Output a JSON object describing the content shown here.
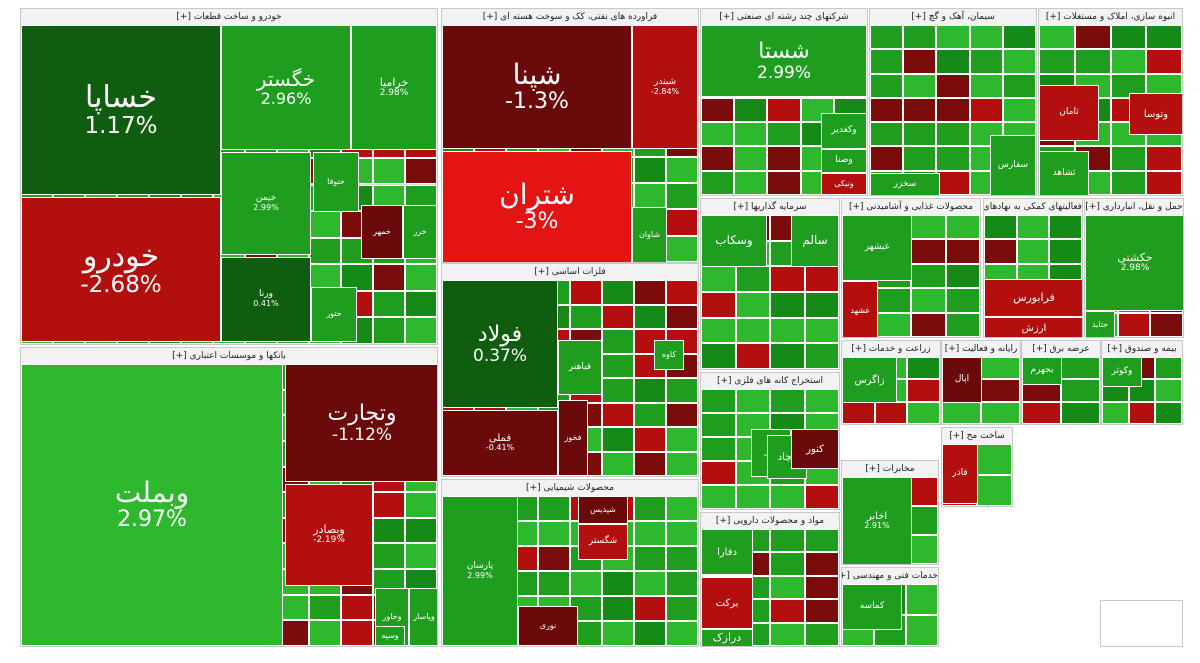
{
  "colors": {
    "strong_green": "#0f5e0f",
    "green": "#1f9d1f",
    "light_green": "#2db82d",
    "strong_red": "#6b0a0a",
    "red": "#b30f0f",
    "bright_red": "#e41414"
  },
  "chart_data": {
    "type": "treemap",
    "metric": "daily percent change",
    "sectors": [
      {
        "name": "خودرو و ساخت قطعات [+]",
        "tiles": [
          {
            "symbol": "خساپا",
            "change": "1.17%",
            "color": "strong_green"
          },
          {
            "symbol": "خودرو",
            "change": "-2.68%",
            "color": "red"
          },
          {
            "symbol": "خگستر",
            "change": "2.96%",
            "color": "green"
          },
          {
            "symbol": "خرامیا",
            "change": "2.98%",
            "color": "green"
          },
          {
            "symbol": "خیمن",
            "change": "2.99%",
            "color": "green"
          },
          {
            "symbol": "ورنا",
            "change": "0.41%",
            "color": "strong_green"
          },
          {
            "symbol": "ختوقا",
            "color": "green"
          },
          {
            "symbol": "خمهر",
            "color": "strong_red"
          },
          {
            "symbol": "ختور",
            "color": "green"
          },
          {
            "symbol": "خزر",
            "color": "green"
          }
        ]
      },
      {
        "name": "بانکها و موسسات اعتباری [+]",
        "tiles": [
          {
            "symbol": "وبملت",
            "change": "2.97%",
            "color": "light_green"
          },
          {
            "symbol": "وتجارت",
            "change": "-1.12%",
            "color": "strong_red"
          },
          {
            "symbol": "وبصادر",
            "change": "-2.19%",
            "color": "red"
          },
          {
            "symbol": "وخاور",
            "color": "green"
          },
          {
            "symbol": "وپاسار",
            "color": "green"
          },
          {
            "symbol": "وسپه",
            "color": "green"
          }
        ]
      },
      {
        "name": "فراورده های نفتی، کک و سوخت هسته ای [+]",
        "tiles": [
          {
            "symbol": "شپنا",
            "change": "-1.3%",
            "color": "strong_red"
          },
          {
            "symbol": "شتران",
            "change": "-3%",
            "color": "bright_red"
          },
          {
            "symbol": "شبندر",
            "change": "-2.84%",
            "color": "red"
          },
          {
            "symbol": "شاوان",
            "color": "green"
          }
        ]
      },
      {
        "name": "فلزات اساسی [+]",
        "tiles": [
          {
            "symbol": "فولاد",
            "change": "0.37%",
            "color": "strong_green"
          },
          {
            "symbol": "فملی",
            "change": "-0.41%",
            "color": "strong_red"
          },
          {
            "symbol": "فخوز",
            "color": "strong_red"
          },
          {
            "symbol": "کاوه",
            "color": "green"
          },
          {
            "symbol": "فباهنر",
            "color": "green"
          }
        ]
      },
      {
        "name": "محصولات شیمیایی [+]",
        "tiles": [
          {
            "symbol": "پارسان",
            "change": "2.99%",
            "color": "green"
          },
          {
            "symbol": "شپدیس",
            "color": "strong_red"
          },
          {
            "symbol": "نوری",
            "color": "strong_red"
          },
          {
            "symbol": "شگستر",
            "color": "red"
          }
        ]
      },
      {
        "name": "شرکتهای چند رشته ای صنعتی [+]",
        "tiles": [
          {
            "symbol": "شستا",
            "change": "2.99%",
            "color": "green"
          },
          {
            "symbol": "وکغدیر",
            "color": "green"
          },
          {
            "symbol": "ونیکی",
            "color": "red"
          },
          {
            "symbol": "وصنا",
            "color": "green"
          }
        ]
      },
      {
        "name": "سرمایه گذاریها [+]",
        "tiles": [
          {
            "symbol": "وسکاب",
            "color": "green"
          },
          {
            "symbol": "سالم",
            "color": "green"
          }
        ]
      },
      {
        "name": "استخراج کانه های فلزی [+]",
        "tiles": [
          {
            "symbol": "کگل",
            "color": "green"
          },
          {
            "symbol": "کچاد",
            "color": "green"
          },
          {
            "symbol": "کنور",
            "color": "strong_red"
          }
        ]
      },
      {
        "name": "مواد و محصولات دارویی [+]",
        "tiles": [
          {
            "symbol": "دفارا",
            "color": "green"
          },
          {
            "symbol": "برکت",
            "color": "red"
          },
          {
            "symbol": "درازک",
            "color": "green"
          }
        ]
      },
      {
        "name": "سیمان، آهک و گچ [+]",
        "tiles": [
          {
            "symbol": "سفارس",
            "color": "green"
          },
          {
            "symbol": "سخزر",
            "color": "green"
          }
        ]
      },
      {
        "name": "انبوه سازی، املاک و مستغلات [+]",
        "tiles": [
          {
            "symbol": "ثامان",
            "color": "red"
          },
          {
            "symbol": "وتوسا",
            "color": "red"
          },
          {
            "symbol": "ثشاهد",
            "color": "green"
          }
        ]
      },
      {
        "name": "محصولات غذایی و آشامیدنی [+]",
        "tiles": [
          {
            "symbol": "غبشهر",
            "color": "green"
          },
          {
            "symbol": "غشهد",
            "color": "red"
          }
        ]
      },
      {
        "name": "فعالیتهای کمکی به نهادهای مالی [+]",
        "tiles": [
          {
            "symbol": "فرابورس",
            "color": "red"
          },
          {
            "symbol": "ارزش",
            "color": "red"
          }
        ]
      },
      {
        "name": "حمل و نقل، انبارداری [+]",
        "tiles": [
          {
            "symbol": "حکشتی",
            "change": "2.98%",
            "color": "green"
          },
          {
            "symbol": "حتاید",
            "color": "green"
          }
        ]
      },
      {
        "name": "زراعت و خدمات [+]",
        "tiles": [
          {
            "symbol": "زاگرس",
            "color": "green"
          }
        ]
      },
      {
        "name": "رایانه و فعالیت [+]",
        "tiles": [
          {
            "symbol": "اپال",
            "color": "strong_red"
          }
        ]
      },
      {
        "name": "عرضه برق [+]",
        "tiles": [
          {
            "symbol": "بجهرم",
            "color": "green"
          }
        ]
      },
      {
        "name": "بیمه و صندوق [+]",
        "tiles": [
          {
            "symbol": "وکوثر",
            "color": "green"
          }
        ]
      },
      {
        "name": "مخابرات [+]",
        "tiles": [
          {
            "symbol": "اخابر",
            "change": "2.91%",
            "color": "green"
          }
        ]
      },
      {
        "name": "خدمات فنی و مهندسی [+]",
        "tiles": [
          {
            "symbol": "کماسه",
            "color": "green"
          }
        ]
      },
      {
        "name": "ساخت مح [+]",
        "tiles": [
          {
            "symbol": "فاذر",
            "color": "red"
          }
        ]
      }
    ]
  }
}
